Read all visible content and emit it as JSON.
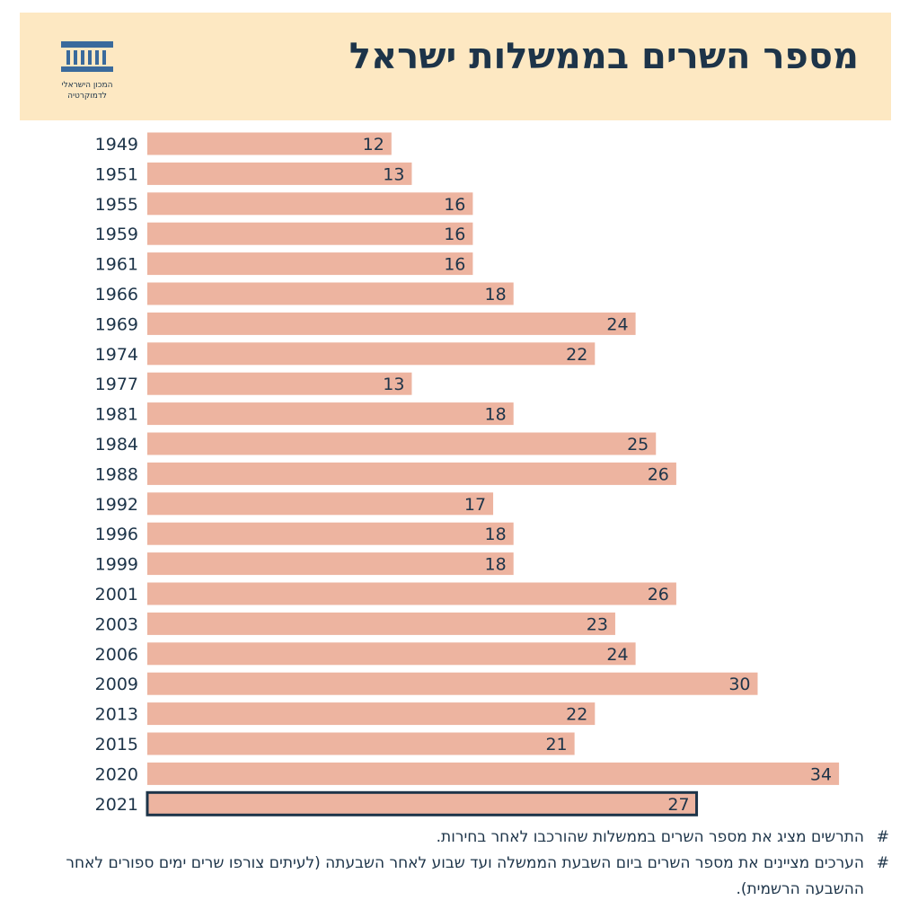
{
  "header": {
    "title": "מספר השרים בממשלות ישראל",
    "logo_line1": "המכון הישראלי",
    "logo_line2": "לדמוקרטיה",
    "logo_icon": "columns-building-icon"
  },
  "colors": {
    "header_bg": "#fde8c2",
    "bar": "#edb4a0",
    "highlight_border": "#1d3449",
    "text": "#1d3449"
  },
  "chart_data": {
    "type": "bar",
    "orientation": "horizontal",
    "categories": [
      "1949",
      "1951",
      "1955",
      "1959",
      "1961",
      "1966",
      "1969",
      "1974",
      "1977",
      "1981",
      "1984",
      "1988",
      "1992",
      "1996",
      "1999",
      "2001",
      "2003",
      "2006",
      "2009",
      "2013",
      "2015",
      "2020",
      "2021"
    ],
    "values": [
      12,
      13,
      16,
      16,
      16,
      18,
      24,
      22,
      13,
      18,
      25,
      26,
      17,
      18,
      18,
      26,
      23,
      24,
      30,
      22,
      21,
      34,
      27
    ],
    "highlighted": "2021",
    "title": "מספר השרים בממשלות ישראל",
    "xlabel": "",
    "ylabel": "",
    "xlim": [
      0,
      34
    ],
    "grid": false,
    "data_labels": true
  },
  "notes": {
    "hash": "#",
    "note1": "התרשים מציג את מספר השרים בממשלות שהורכבו לאחר בחירות.",
    "note2": "הערכים מציינים את מספר השרים ביום השבעת הממשלה ועד שבוע לאחר השבעתה (לעיתים צורפו שרים ימים ספורים לאחר ההשבעה הרשמית)."
  }
}
